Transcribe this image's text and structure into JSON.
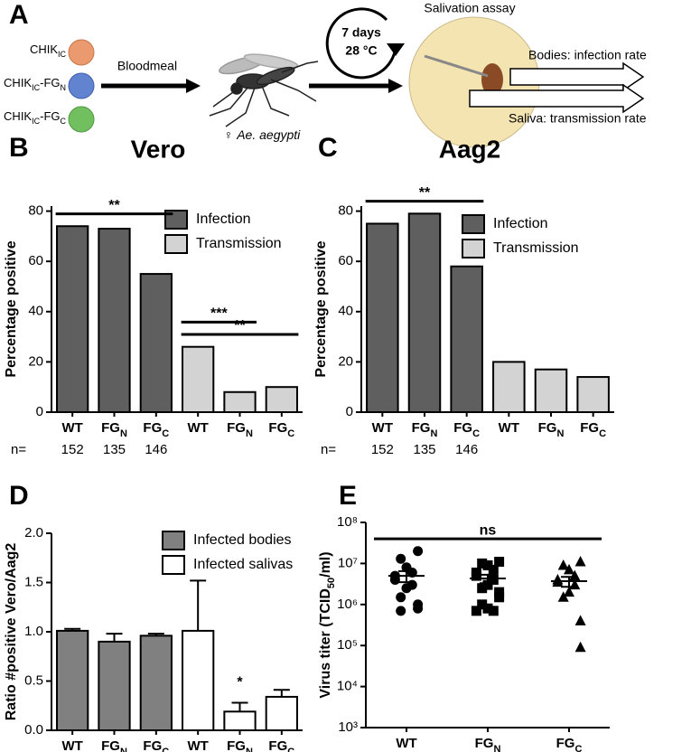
{
  "panel_a": {
    "letter": "A",
    "strains": [
      {
        "base": "CHIK",
        "sub": "IC"
      },
      {
        "base": "CHIK",
        "sub": "IC",
        "suffix": "-FG",
        "suffix_sub": "N"
      },
      {
        "base": "CHIK",
        "sub": "IC",
        "suffix": "-FG",
        "suffix_sub": "C"
      }
    ],
    "bloodmeal": "Bloodmeal",
    "species_symbol": "♀",
    "species": "Ae. aegypti",
    "incubation_time": "7 days",
    "incubation_temp": "28 °C",
    "assay": "Salivation assay",
    "bodies": "Bodies: infection rate",
    "saliva": "Saliva: transmission rate"
  },
  "chart_data": [
    {
      "type": "bar",
      "panel": "B",
      "title": "Vero",
      "ylabel": "Percentage positive",
      "categories": [
        "WT",
        "FG",
        "FG",
        "WT",
        "FG",
        "FG"
      ],
      "category_subscripts": [
        null,
        "N",
        "C",
        null,
        "N",
        "C"
      ],
      "series": [
        {
          "name": "Infection",
          "color": "#5f5f5f",
          "values": [
            74,
            73,
            55,
            null,
            null,
            null
          ]
        },
        {
          "name": "Transmission",
          "color": "#d3d3d3",
          "values": [
            null,
            null,
            null,
            26,
            8,
            10
          ]
        }
      ],
      "ylim": [
        0,
        82
      ],
      "yticks": [
        0,
        20,
        40,
        60,
        80
      ],
      "legend": "upper right",
      "n_label": "n=",
      "n": [
        152,
        135,
        146
      ],
      "annotations": [
        {
          "text": "**",
          "from": 0,
          "to": 2
        },
        {
          "text": "**",
          "from": 3,
          "to": 5
        },
        {
          "text": "***",
          "from": 3,
          "to": 4
        }
      ]
    },
    {
      "type": "bar",
      "panel": "C",
      "title": "Aag2",
      "ylabel": "Percentage positive",
      "categories": [
        "WT",
        "FG",
        "FG",
        "WT",
        "FG",
        "FG"
      ],
      "category_subscripts": [
        null,
        "N",
        "C",
        null,
        "N",
        "C"
      ],
      "series": [
        {
          "name": "Infection",
          "color": "#5f5f5f",
          "values": [
            75,
            79,
            58,
            null,
            null,
            null
          ]
        },
        {
          "name": "Transmission",
          "color": "#d3d3d3",
          "values": [
            null,
            null,
            null,
            20,
            17,
            14
          ]
        }
      ],
      "ylim": [
        0,
        82
      ],
      "yticks": [
        0,
        20,
        40,
        60,
        80
      ],
      "legend": "upper right",
      "n_label": "n=",
      "n": [
        152,
        135,
        146
      ],
      "annotations": [
        {
          "text": "**",
          "from": 0,
          "to": 2
        }
      ]
    },
    {
      "type": "bar",
      "panel": "D",
      "ylabel": "Ratio #positive Vero/Aag2",
      "categories": [
        "WT",
        "FG",
        "FG",
        "WT",
        "FG",
        "FG"
      ],
      "category_subscripts": [
        null,
        "N",
        "C",
        null,
        "N",
        "C"
      ],
      "series": [
        {
          "name": "Infected bodies",
          "color": "#808080",
          "values": [
            1.01,
            0.9,
            0.96,
            null,
            null,
            null
          ],
          "errors": [
            0.02,
            0.08,
            0.02,
            null,
            null,
            null
          ]
        },
        {
          "name": "Infected salivas",
          "color": "#ffffff",
          "values": [
            null,
            null,
            null,
            1.01,
            0.19,
            0.34
          ],
          "errors": [
            null,
            null,
            null,
            0.51,
            0.09,
            0.07
          ]
        }
      ],
      "ylim": [
        0,
        2
      ],
      "yticks": [
        {
          "value": 0,
          "label": "0.0"
        },
        0.5,
        {
          "value": 1,
          "label": "1.0"
        },
        1.5,
        {
          "value": 2,
          "label": "2.0"
        }
      ],
      "legend": "upper right",
      "annotations": [
        {
          "text": "*",
          "from": 4,
          "to": 4
        }
      ]
    },
    {
      "type": "scatter",
      "panel": "E",
      "ylabel": "Virus titer (TCID",
      "ylabel_sub": "50",
      "ylabel_end": "/ml)",
      "log_y": true,
      "categories": [
        "WT",
        "FG",
        "FG"
      ],
      "category_subscripts": [
        null,
        "N",
        "C"
      ],
      "groups": [
        {
          "marker": "circle",
          "values": [
            20000000,
            13000000,
            8000000,
            6000000,
            5000000,
            4000000,
            3000000,
            2500000,
            1500000,
            1000000,
            800000,
            700000
          ]
        },
        {
          "marker": "square",
          "values": [
            11000000,
            10000000,
            9000000,
            7000000,
            6000000,
            5000000,
            4000000,
            3000000,
            2500000,
            2000000,
            1500000,
            1000000,
            800000,
            700000,
            700000
          ]
        },
        {
          "marker": "triangle",
          "values": [
            11000000,
            9000000,
            7000000,
            5000000,
            4000000,
            3500000,
            3000000,
            2000000,
            1500000,
            400000,
            90000
          ]
        }
      ],
      "means": [
        5000000,
        4300000,
        3700000
      ],
      "sems": [
        1500000,
        1000000,
        1000000
      ],
      "color": "#000000",
      "ylim": [
        1000,
        100000000
      ],
      "yticks": [
        {
          "value": 1000,
          "label": "10³"
        },
        {
          "value": 10000,
          "label": "10⁴"
        },
        {
          "value": 100000,
          "label": "10⁵"
        },
        {
          "value": 1000000,
          "label": "10⁶"
        },
        {
          "value": 10000000,
          "label": "10⁷"
        },
        {
          "value": 100000000,
          "label": "10⁸"
        }
      ],
      "annotations": [
        {
          "text": "ns",
          "from": 0,
          "to": 2
        }
      ]
    }
  ]
}
